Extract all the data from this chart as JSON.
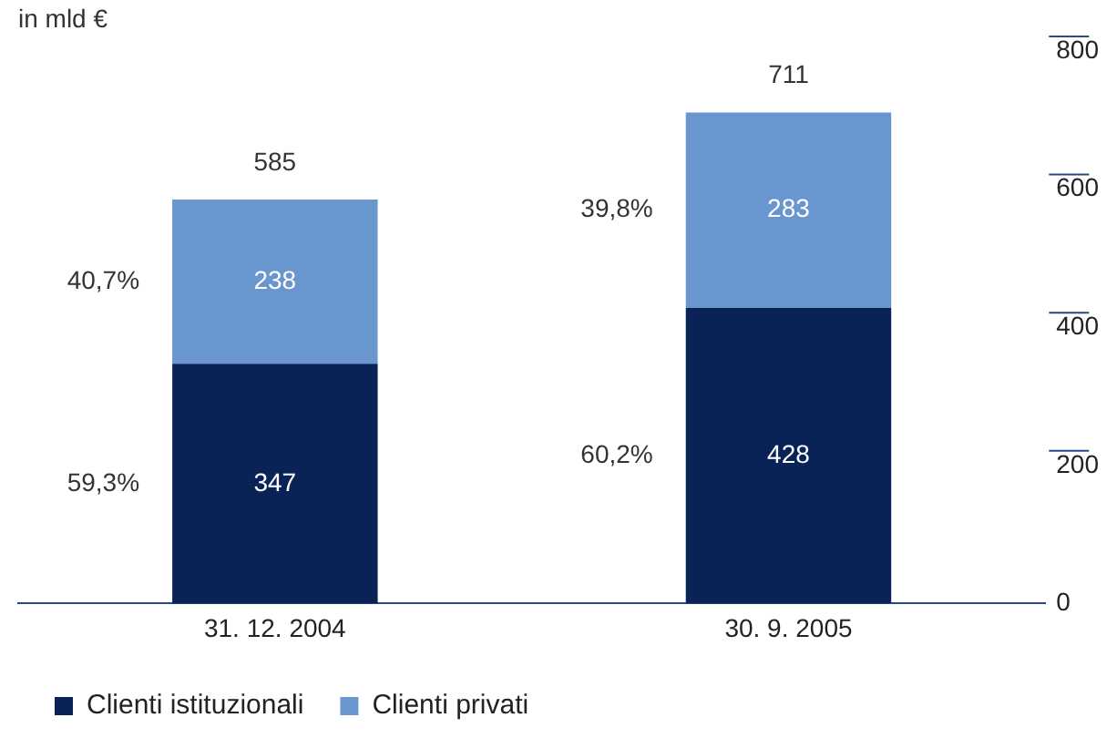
{
  "chart_data": {
    "type": "bar",
    "title": "in mld €",
    "stacked": true,
    "categories": [
      "31. 12. 2004",
      "30. 9. 2005"
    ],
    "series": [
      {
        "name": "Clienti istituzionali",
        "color": "#0a2357",
        "values": [
          347,
          428
        ]
      },
      {
        "name": "Clienti privati",
        "color": "#6a96cf",
        "values": [
          238,
          283
        ]
      }
    ],
    "totals": [
      "585",
      "711"
    ],
    "data_labels": true,
    "ylim": [
      0,
      800
    ],
    "yticks": [
      0,
      200,
      400,
      600,
      800
    ],
    "grid": false,
    "legend": "bottom",
    "annotations": [
      "59,3%",
      "40,7%",
      "60,2%",
      "39,8%"
    ]
  }
}
